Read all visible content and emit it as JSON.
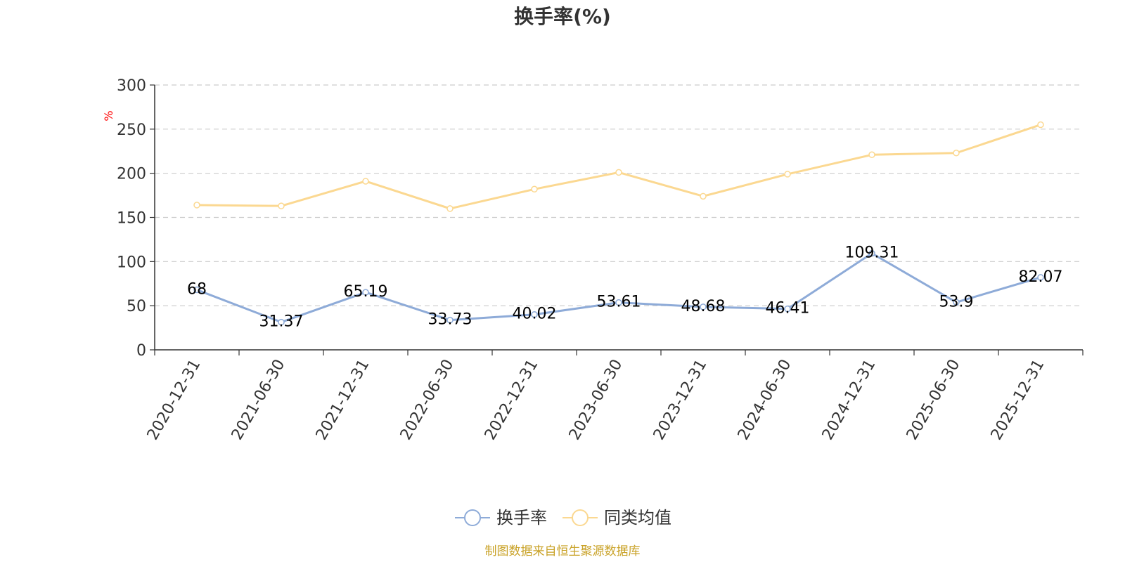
{
  "chart_data": {
    "type": "line",
    "title": "换手率(%)",
    "ylabel": "%",
    "xlabel": "",
    "ylim": [
      0,
      300
    ],
    "yticks": [
      0,
      50,
      100,
      150,
      200,
      250,
      300
    ],
    "grid": true,
    "legend_position": "bottom-center",
    "categories": [
      "2020-12-31",
      "2021-06-30",
      "2021-12-31",
      "2022-06-30",
      "2022-12-31",
      "2023-06-30",
      "2023-12-31",
      "2024-06-30",
      "2024-12-31",
      "2025-06-30",
      "2025-12-31"
    ],
    "series": [
      {
        "name": "换手率",
        "color": "#8eabd8",
        "values": [
          68,
          31.37,
          65.19,
          33.73,
          40.02,
          53.61,
          48.68,
          46.41,
          109.31,
          53.9,
          82.07
        ],
        "labels": [
          "68",
          "31.37",
          "65.19",
          "33.73",
          "40.02",
          "53.61",
          "48.68",
          "46.41",
          "109.31",
          "53.9",
          "82.07"
        ]
      },
      {
        "name": "同类均值",
        "color": "#fbd891",
        "values": [
          164,
          163,
          191,
          160,
          182,
          201,
          174,
          199,
          221,
          223,
          255
        ]
      }
    ]
  },
  "source_note": "制图数据来自恒生聚源数据库",
  "colors": {
    "axis": "#333333",
    "grid": "#cccccc",
    "unit_label": "#ff0000",
    "source_note": "#c9a227"
  }
}
